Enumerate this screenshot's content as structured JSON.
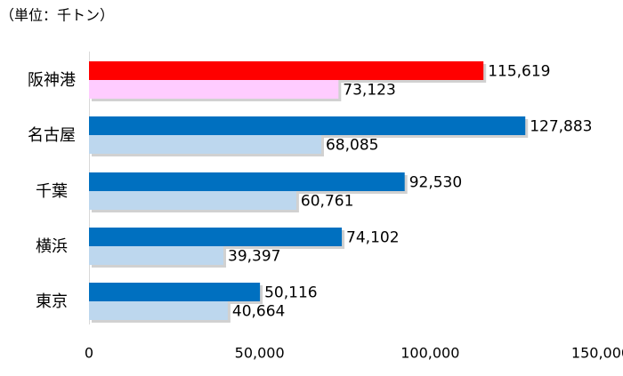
{
  "chart_data": {
    "type": "bar",
    "orientation": "horizontal",
    "unit_label": "（単位：千トン）",
    "categories": [
      "阪神港",
      "名古屋",
      "千葉",
      "横浜",
      "東京"
    ],
    "series": [
      {
        "name": "series-1",
        "values": [
          115619,
          127883,
          92530,
          74102,
          50116
        ],
        "colors": [
          "#ff0000",
          "#0070c0",
          "#0070c0",
          "#0070c0",
          "#0070c0"
        ]
      },
      {
        "name": "series-2",
        "values": [
          73123,
          68085,
          60761,
          39397,
          40664
        ],
        "colors": [
          "#ffccff",
          "#bdd7ee",
          "#bdd7ee",
          "#bdd7ee",
          "#bdd7ee"
        ]
      }
    ],
    "value_labels": [
      [
        "115,619",
        "73,123"
      ],
      [
        "127,883",
        "68,085"
      ],
      [
        "92,530",
        "60,761"
      ],
      [
        "74,102",
        "39,397"
      ],
      [
        "50,116",
        "40,664"
      ]
    ],
    "xlim": [
      0,
      150000
    ],
    "xticks": [
      0,
      50000,
      100000,
      150000
    ],
    "xtick_labels": [
      "0",
      "50,000",
      "100,000",
      "150,000"
    ],
    "grid": false,
    "legend": "none"
  }
}
